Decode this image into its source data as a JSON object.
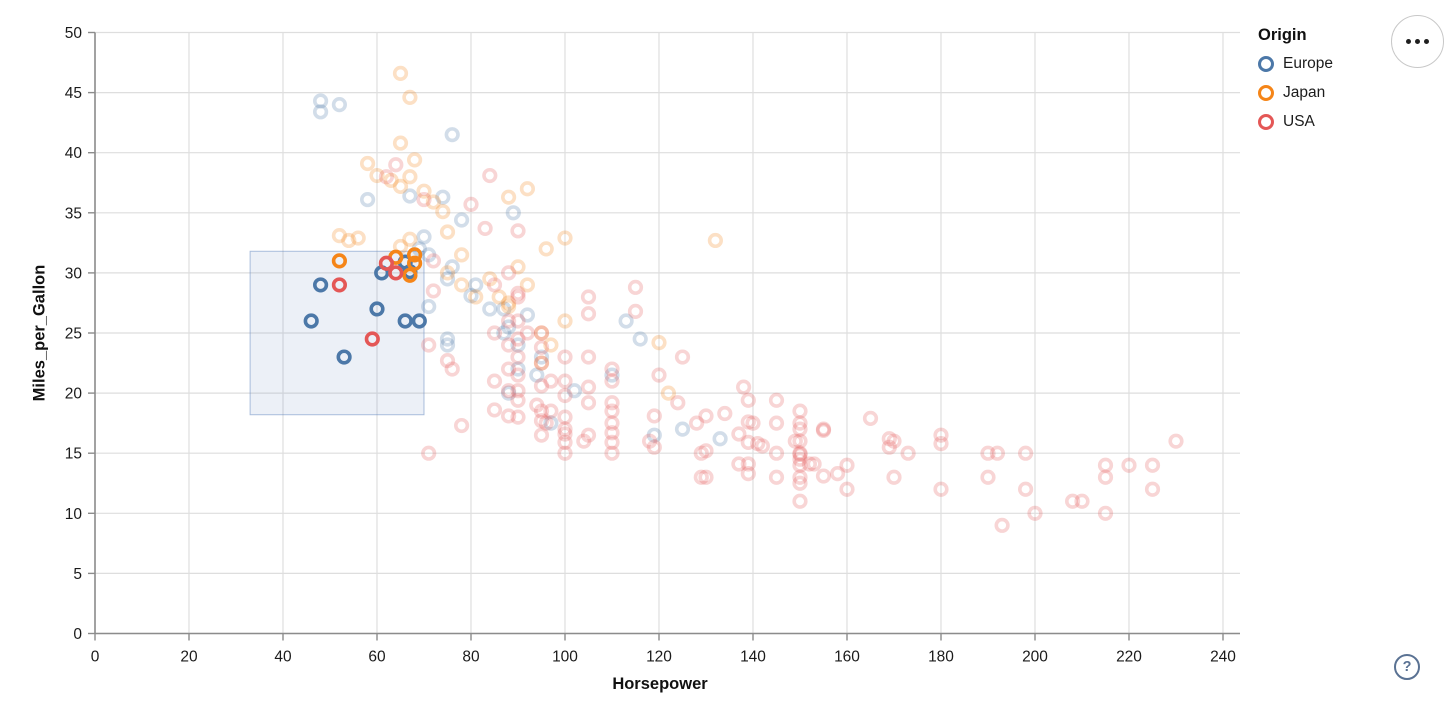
{
  "ui": {
    "actions_button_label": "more options",
    "help_glyph": "?"
  },
  "chart_data": {
    "type": "scatter",
    "title": "",
    "xlabel": "Horsepower",
    "ylabel": "Miles_per_Gallon",
    "x_axis": {
      "domain": [
        0,
        240
      ],
      "ticks": [
        0,
        20,
        40,
        60,
        80,
        100,
        120,
        140,
        160,
        180,
        200,
        220,
        240
      ]
    },
    "y_axis": {
      "domain": [
        0,
        50
      ],
      "ticks": [
        0,
        5,
        10,
        15,
        20,
        25,
        30,
        35,
        40,
        45,
        50
      ]
    },
    "grid": true,
    "legend": {
      "title": "Origin",
      "position": "top-right"
    },
    "brush": {
      "x_extent": [
        33,
        70
      ],
      "y_extent": [
        18.2,
        31.8
      ]
    },
    "style": {
      "grid_color": "#dedede",
      "axis_color": "#8c8c8c",
      "label_color": "#1b1b1b",
      "brush_fill": "rgba(105,140,195,0.13)",
      "brush_stroke": "rgba(105,140,195,0.55)",
      "unselected_opacity": 0.25,
      "point_radius": 5.8,
      "point_stroke_width": 3.6
    },
    "series": [
      {
        "name": "Europe",
        "color": "#4c78a8",
        "points": [
          [
            48,
            29
          ],
          [
            46,
            26
          ],
          [
            60,
            27
          ],
          [
            53,
            23
          ],
          [
            66,
            26
          ],
          [
            69,
            26
          ],
          [
            61,
            30
          ],
          [
            66,
            30.9
          ],
          [
            67,
            30.1
          ],
          [
            48,
            44.3
          ],
          [
            48,
            43.4
          ],
          [
            52,
            44
          ],
          [
            76,
            41.5
          ],
          [
            67,
            36.4
          ],
          [
            58,
            36.1
          ],
          [
            74,
            36.3
          ],
          [
            78,
            34.4
          ],
          [
            89,
            35
          ],
          [
            71,
            31.5
          ],
          [
            69,
            32
          ],
          [
            76,
            30.5
          ],
          [
            70,
            33
          ],
          [
            75,
            29.5
          ],
          [
            80,
            28.1
          ],
          [
            81,
            29
          ],
          [
            87,
            27
          ],
          [
            84,
            27
          ],
          [
            88,
            25.5
          ],
          [
            87,
            25
          ],
          [
            92,
            26.5
          ],
          [
            90,
            24
          ],
          [
            75,
            24.5
          ],
          [
            75,
            24
          ],
          [
            71,
            27.2
          ],
          [
            95,
            23
          ],
          [
            113,
            26
          ],
          [
            116,
            24.5
          ],
          [
            110,
            21.5
          ],
          [
            102,
            20.2
          ],
          [
            88,
            20
          ],
          [
            90,
            22
          ],
          [
            94,
            21.5
          ],
          [
            97,
            17.5
          ],
          [
            119,
            16.5
          ],
          [
            125,
            17
          ],
          [
            133,
            16.2
          ]
        ]
      },
      {
        "name": "Japan",
        "color": "#f58518",
        "points": [
          [
            52,
            31
          ],
          [
            64,
            31.3
          ],
          [
            68,
            31.5
          ],
          [
            68,
            30.8
          ],
          [
            67,
            29.8
          ],
          [
            65,
            46.6
          ],
          [
            67,
            44.6
          ],
          [
            65,
            40.8
          ],
          [
            68,
            39.4
          ],
          [
            58,
            39.1
          ],
          [
            60,
            38.1
          ],
          [
            63,
            37.7
          ],
          [
            67,
            38
          ],
          [
            65,
            37.2
          ],
          [
            70,
            36.8
          ],
          [
            72,
            35.9
          ],
          [
            74,
            35.1
          ],
          [
            88,
            36.3
          ],
          [
            92,
            37
          ],
          [
            52,
            33.1
          ],
          [
            54,
            32.7
          ],
          [
            56,
            32.9
          ],
          [
            65,
            32.2
          ],
          [
            67,
            32.8
          ],
          [
            75,
            33.4
          ],
          [
            78,
            31.5
          ],
          [
            75,
            30
          ],
          [
            78,
            29
          ],
          [
            81,
            28
          ],
          [
            84,
            29.5
          ],
          [
            86,
            28
          ],
          [
            88,
            27.2
          ],
          [
            88,
            27.5
          ],
          [
            90,
            30.5
          ],
          [
            92,
            29
          ],
          [
            96,
            32
          ],
          [
            100,
            32.9
          ],
          [
            95,
            25
          ],
          [
            97,
            24
          ],
          [
            95,
            22.5
          ],
          [
            100,
            26
          ],
          [
            132,
            32.7
          ],
          [
            120,
            24.2
          ],
          [
            122,
            20
          ]
        ]
      },
      {
        "name": "USA",
        "color": "#e45756",
        "points": [
          [
            52,
            29
          ],
          [
            62,
            30.8
          ],
          [
            64,
            30
          ],
          [
            59,
            24.5
          ],
          [
            64,
            39
          ],
          [
            62,
            38
          ],
          [
            70,
            36.1
          ],
          [
            80,
            35.7
          ],
          [
            84,
            38.1
          ],
          [
            90,
            33.5
          ],
          [
            83,
            33.7
          ],
          [
            72,
            31
          ],
          [
            72,
            28.5
          ],
          [
            71,
            24
          ],
          [
            75,
            22.7
          ],
          [
            76,
            22
          ],
          [
            78,
            17.3
          ],
          [
            71,
            15
          ],
          [
            85,
            29
          ],
          [
            85,
            25
          ],
          [
            85,
            21
          ],
          [
            85,
            18.6
          ],
          [
            88,
            30
          ],
          [
            88,
            26
          ],
          [
            88,
            24
          ],
          [
            88,
            22
          ],
          [
            88,
            20.2
          ],
          [
            88,
            18.1
          ],
          [
            90,
            28
          ],
          [
            90,
            28.3
          ],
          [
            90,
            26
          ],
          [
            90,
            24.5
          ],
          [
            90,
            23
          ],
          [
            90,
            21.5
          ],
          [
            90,
            20.2
          ],
          [
            90,
            19.4
          ],
          [
            90,
            18
          ],
          [
            92,
            25
          ],
          [
            94,
            19
          ],
          [
            95,
            25
          ],
          [
            95,
            23.8
          ],
          [
            95,
            22.5
          ],
          [
            95,
            20.6
          ],
          [
            95,
            18.5
          ],
          [
            95,
            17.7
          ],
          [
            95,
            16.5
          ],
          [
            96,
            17.5
          ],
          [
            97,
            21
          ],
          [
            97,
            18.5
          ],
          [
            100,
            23
          ],
          [
            100,
            21
          ],
          [
            100,
            19.8
          ],
          [
            100,
            18
          ],
          [
            100,
            17
          ],
          [
            100,
            16.6
          ],
          [
            100,
            15.9
          ],
          [
            100,
            15
          ],
          [
            104,
            16
          ],
          [
            105,
            28
          ],
          [
            105,
            26.6
          ],
          [
            105,
            23
          ],
          [
            105,
            20.5
          ],
          [
            105,
            19.2
          ],
          [
            105,
            16.5
          ],
          [
            110,
            22
          ],
          [
            110,
            21
          ],
          [
            110,
            19.2
          ],
          [
            110,
            18.5
          ],
          [
            110,
            17.5
          ],
          [
            110,
            16.7
          ],
          [
            110,
            15.9
          ],
          [
            110,
            15
          ],
          [
            115,
            28.8
          ],
          [
            115,
            26.8
          ],
          [
            118,
            16
          ],
          [
            119,
            18.1
          ],
          [
            119,
            15.5
          ],
          [
            120,
            21.5
          ],
          [
            124,
            19.2
          ],
          [
            125,
            23
          ],
          [
            128,
            17.5
          ],
          [
            129,
            15
          ],
          [
            129,
            13
          ],
          [
            130,
            18.1
          ],
          [
            130,
            15.2
          ],
          [
            130,
            13
          ],
          [
            134,
            18.3
          ],
          [
            137,
            16.6
          ],
          [
            137,
            14.1
          ],
          [
            138,
            20.5
          ],
          [
            139,
            19.4
          ],
          [
            139,
            17.6
          ],
          [
            139,
            15.9
          ],
          [
            139,
            14.1
          ],
          [
            139,
            13.3
          ],
          [
            140,
            17.5
          ],
          [
            141,
            15.8
          ],
          [
            142,
            15.6
          ],
          [
            145,
            19.4
          ],
          [
            145,
            17.5
          ],
          [
            145,
            15
          ],
          [
            145,
            13
          ],
          [
            149,
            16
          ],
          [
            150,
            18.5
          ],
          [
            150,
            17.5
          ],
          [
            150,
            17
          ],
          [
            150,
            16
          ],
          [
            150,
            15
          ],
          [
            150,
            14.9
          ],
          [
            150,
            14.5
          ],
          [
            150,
            14
          ],
          [
            150,
            13
          ],
          [
            150,
            12.5
          ],
          [
            150,
            11
          ],
          [
            152,
            14.1
          ],
          [
            153,
            14.1
          ],
          [
            155,
            17
          ],
          [
            155,
            16.9
          ],
          [
            155,
            13.1
          ],
          [
            158,
            13.3
          ],
          [
            160,
            14
          ],
          [
            160,
            12
          ],
          [
            165,
            17.9
          ],
          [
            169,
            16.2
          ],
          [
            169,
            15.5
          ],
          [
            170,
            16
          ],
          [
            170,
            13
          ],
          [
            173,
            15
          ],
          [
            180,
            16.5
          ],
          [
            180,
            15.8
          ],
          [
            180,
            12
          ],
          [
            190,
            15
          ],
          [
            192,
            15
          ],
          [
            190,
            13
          ],
          [
            193,
            9
          ],
          [
            198,
            15
          ],
          [
            198,
            12
          ],
          [
            200,
            10
          ],
          [
            208,
            11
          ],
          [
            210,
            11
          ],
          [
            215,
            14
          ],
          [
            215,
            13
          ],
          [
            215,
            10
          ],
          [
            220,
            14
          ],
          [
            225,
            14
          ],
          [
            225,
            12
          ],
          [
            230,
            16
          ]
        ]
      }
    ]
  }
}
